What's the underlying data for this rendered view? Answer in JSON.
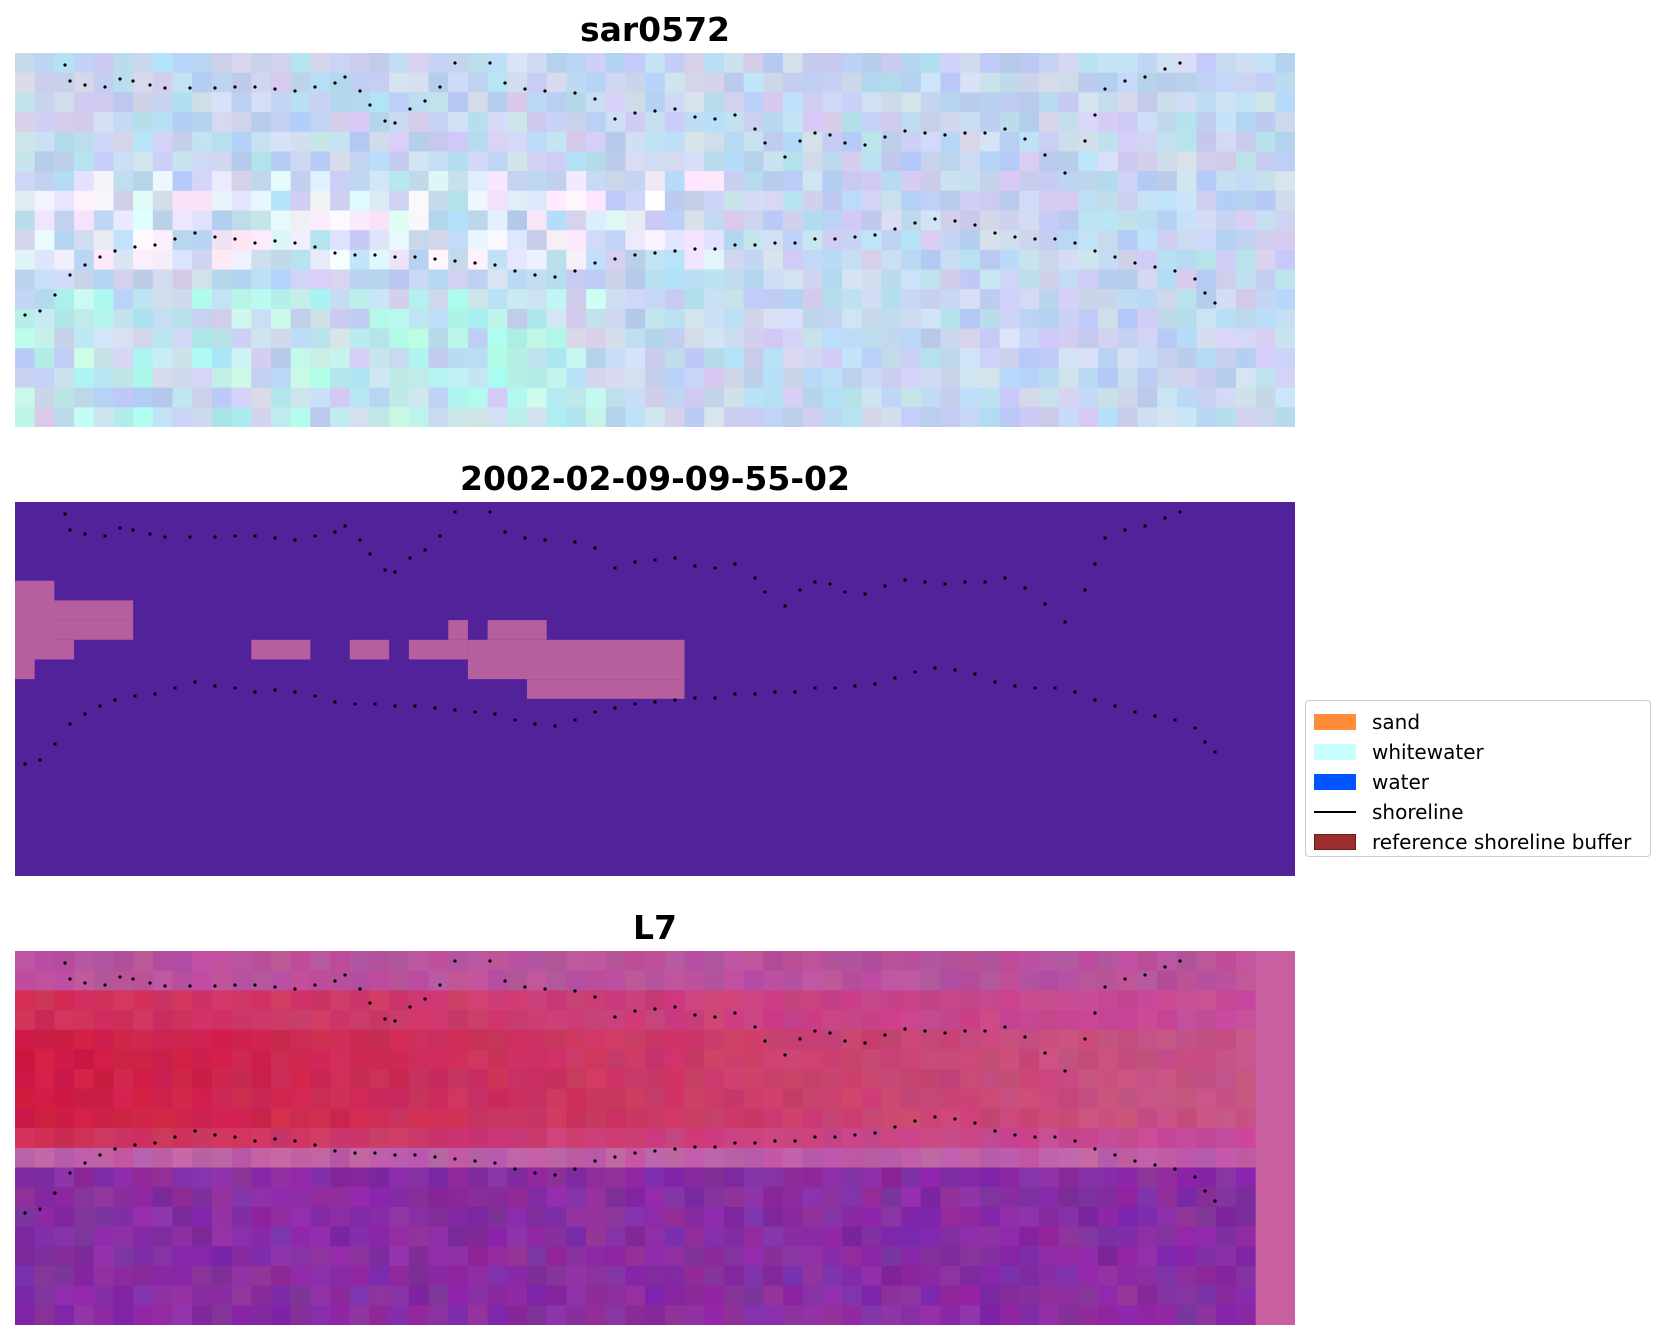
{
  "panels": [
    {
      "title": "sar0572",
      "kind": "rgb-image"
    },
    {
      "title": "2002-02-09-09-55-02",
      "kind": "classified-image"
    },
    {
      "title": "L7",
      "kind": "index-image"
    }
  ],
  "classification_colors": {
    "background": "#52229a",
    "whitewater_patch": "#b65e9e"
  },
  "legend": {
    "items": [
      {
        "label": "sand",
        "color": "#ff8c3b",
        "type": "patch"
      },
      {
        "label": "whitewater",
        "color": "#c8ffff",
        "type": "patch"
      },
      {
        "label": "water",
        "color": "#0055ff",
        "type": "patch"
      },
      {
        "label": "shoreline",
        "color": "#000000",
        "type": "line"
      },
      {
        "label": "reference shoreline buffer",
        "color": "#9b2d2d",
        "type": "patch"
      }
    ]
  }
}
